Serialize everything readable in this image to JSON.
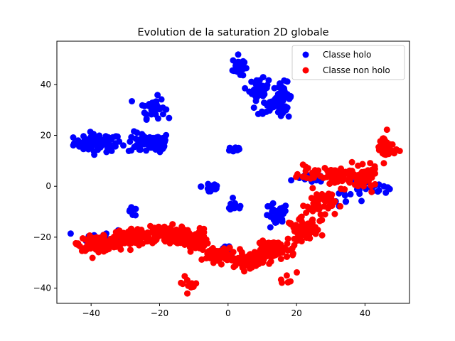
{
  "chart_data": {
    "type": "scatter",
    "title": "Evolution de la saturation 2D globale",
    "xlabel": "",
    "ylabel": "",
    "xlim": [
      -50,
      53
    ],
    "ylim": [
      -46,
      57
    ],
    "xticks": [
      -40,
      -20,
      0,
      20,
      40
    ],
    "yticks": [
      -40,
      -20,
      0,
      20,
      40
    ],
    "xtick_labels": [
      "−40",
      "−20",
      "0",
      "20",
      "40"
    ],
    "ytick_labels": [
      "−40",
      "−20",
      "0",
      "20",
      "40"
    ],
    "grid": false,
    "legend_position": "top-right",
    "series": [
      {
        "name": "Classe holo",
        "color": "#0000ff",
        "clusters": [
          {
            "cx": -38,
            "cy": 17,
            "sx": 5,
            "sy": 2.5,
            "n": 80
          },
          {
            "cx": -25,
            "cy": 17,
            "sx": 3,
            "sy": 3,
            "n": 40
          },
          {
            "cx": -20,
            "cy": 17,
            "sx": 1.8,
            "sy": 3,
            "n": 40
          },
          {
            "cx": -22,
            "cy": 31,
            "sx": 2.5,
            "sy": 3,
            "n": 40
          },
          {
            "cx": 3,
            "cy": 47,
            "sx": 1.2,
            "sy": 3,
            "n": 30
          },
          {
            "cx": 9,
            "cy": 38,
            "sx": 2,
            "sy": 3,
            "n": 40
          },
          {
            "cx": 16,
            "cy": 35,
            "sx": 2,
            "sy": 4,
            "n": 40
          },
          {
            "cx": 13,
            "cy": 31,
            "sx": 3,
            "sy": 2,
            "n": 25
          },
          {
            "cx": 2,
            "cy": 14.5,
            "sx": 1.5,
            "sy": 1,
            "n": 12
          },
          {
            "cx": -5,
            "cy": 0,
            "sx": 2,
            "sy": 2.5,
            "n": 15
          },
          {
            "cx": 2,
            "cy": -8,
            "sx": 2,
            "sy": 1.5,
            "n": 10
          },
          {
            "cx": -28,
            "cy": -10,
            "sx": 1.5,
            "sy": 1.2,
            "n": 10
          },
          {
            "cx": 14,
            "cy": -12,
            "sx": 2.5,
            "sy": 4,
            "n": 30
          },
          {
            "cx": 24,
            "cy": 3,
            "sx": 3,
            "sy": 1,
            "n": 12
          },
          {
            "cx": 35,
            "cy": -5,
            "sx": 5,
            "sy": 4,
            "n": 15
          },
          {
            "cx": 0,
            "cy": -25,
            "sx": 2,
            "sy": 1.5,
            "n": 10
          },
          {
            "cx": -36,
            "cy": -20,
            "sx": 5,
            "sy": 2,
            "n": 20
          },
          {
            "cx": 44,
            "cy": 0,
            "sx": 3,
            "sy": 2,
            "n": 12
          }
        ]
      },
      {
        "name": "Classe non holo",
        "color": "#ff0000",
        "clusters": [
          {
            "cx": -38,
            "cy": -22.5,
            "sx": 4,
            "sy": 2,
            "n": 120
          },
          {
            "cx": -28,
            "cy": -20,
            "sx": 4,
            "sy": 2.5,
            "n": 110
          },
          {
            "cx": -18,
            "cy": -19,
            "sx": 4,
            "sy": 2.5,
            "n": 100
          },
          {
            "cx": -10,
            "cy": -21,
            "sx": 3,
            "sy": 3,
            "n": 60
          },
          {
            "cx": -3,
            "cy": -27,
            "sx": 3,
            "sy": 2,
            "n": 60
          },
          {
            "cx": 6,
            "cy": -29,
            "sx": 4,
            "sy": 2,
            "n": 80
          },
          {
            "cx": 14,
            "cy": -25,
            "sx": 4,
            "sy": 2.5,
            "n": 70
          },
          {
            "cx": 22,
            "cy": -17,
            "sx": 3,
            "sy": 3,
            "n": 60
          },
          {
            "cx": 27,
            "cy": -7,
            "sx": 3,
            "sy": 4,
            "n": 60
          },
          {
            "cx": 33,
            "cy": 4,
            "sx": 4,
            "sy": 3,
            "n": 50
          },
          {
            "cx": 40,
            "cy": 3,
            "sx": 2.5,
            "sy": 3,
            "n": 60
          },
          {
            "cx": 46,
            "cy": 15,
            "sx": 2,
            "sy": 4,
            "n": 40
          },
          {
            "cx": 25,
            "cy": 5,
            "sx": 3,
            "sy": 2,
            "n": 25
          },
          {
            "cx": -12,
            "cy": -39,
            "sx": 2,
            "sy": 2,
            "n": 10
          },
          {
            "cx": 17,
            "cy": -35,
            "sx": 2,
            "sy": 2,
            "n": 6
          }
        ]
      }
    ]
  }
}
